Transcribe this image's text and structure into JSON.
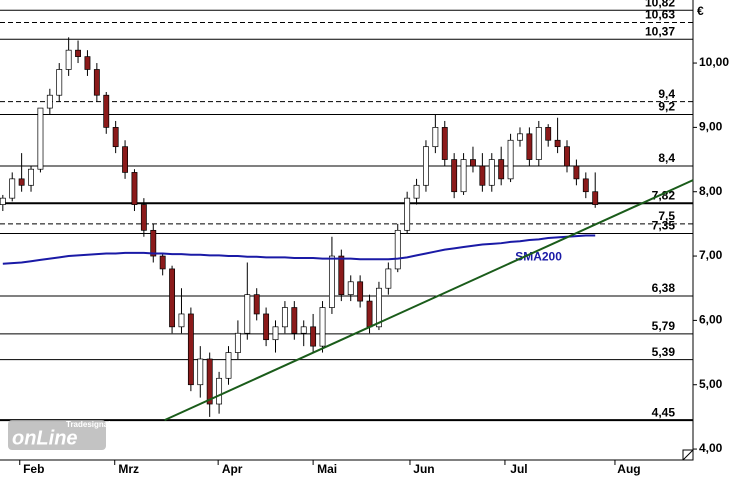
{
  "chart_data": {
    "type": "candlestick",
    "currency": "€",
    "logo": {
      "brand": "Tradesignal",
      "name": "onLine"
    },
    "up_color": "#ffffff",
    "down_color": "#8b1a1a",
    "xlim": [
      -0.3,
      73.4
    ],
    "xticks": [
      {
        "value": 1.8,
        "label": "Feb"
      },
      {
        "value": 11.9,
        "label": "Mrz"
      },
      {
        "value": 22.9,
        "label": "Apr"
      },
      {
        "value": 33,
        "label": "Mai"
      },
      {
        "value": 43.3,
        "label": "Jun"
      },
      {
        "value": 53.4,
        "label": "Jul"
      },
      {
        "value": 65.1,
        "label": "Aug"
      }
    ],
    "ylim": [
      3.83,
      10.98
    ],
    "yticks": [
      {
        "value": 4,
        "label": "4,00"
      },
      {
        "value": 5,
        "label": "5,00"
      },
      {
        "value": 6,
        "label": "6,00"
      },
      {
        "value": 7,
        "label": "7,00"
      },
      {
        "value": 8,
        "label": "8,00"
      },
      {
        "value": 9,
        "label": "9,00"
      },
      {
        "value": 10,
        "label": "10,00"
      }
    ],
    "levels": [
      {
        "value": 10.82,
        "label": "10,82",
        "style": "solid"
      },
      {
        "value": 10.63,
        "label": "10,63",
        "style": "dashed"
      },
      {
        "value": 10.37,
        "label": "10,37",
        "style": "solid"
      },
      {
        "value": 9.4,
        "label": "9,4",
        "style": "dashed"
      },
      {
        "value": 9.2,
        "label": "9,2",
        "style": "solid"
      },
      {
        "value": 8.4,
        "label": "8,4",
        "style": "solid"
      },
      {
        "value": 7.82,
        "label": "7,82",
        "style": "bold"
      },
      {
        "value": 7.5,
        "label": "7,5",
        "style": "dashed"
      },
      {
        "value": 7.35,
        "label": "7,35",
        "style": "solid"
      },
      {
        "value": 6.38,
        "label": "6,38",
        "style": "solid"
      },
      {
        "value": 5.79,
        "label": "5,79",
        "style": "solid"
      },
      {
        "value": 5.39,
        "label": "5,39",
        "style": "solid"
      },
      {
        "value": 4.45,
        "label": "4,45",
        "style": "bold"
      }
    ],
    "candles": [
      [
        7.8,
        7.95,
        7.7,
        7.9
      ],
      [
        7.9,
        8.3,
        7.85,
        8.2
      ],
      [
        8.2,
        8.6,
        8.0,
        8.1
      ],
      [
        8.1,
        8.4,
        8.0,
        8.35
      ],
      [
        8.35,
        9.3,
        8.3,
        9.3
      ],
      [
        9.3,
        9.6,
        9.2,
        9.5
      ],
      [
        9.5,
        10.0,
        9.4,
        9.9
      ],
      [
        9.9,
        10.4,
        9.8,
        10.2
      ],
      [
        10.2,
        10.35,
        10.0,
        10.1
      ],
      [
        10.1,
        10.2,
        9.8,
        9.9
      ],
      [
        9.9,
        10.0,
        9.4,
        9.5
      ],
      [
        9.5,
        9.55,
        8.9,
        9.0
      ],
      [
        9.0,
        9.1,
        8.6,
        8.7
      ],
      [
        8.7,
        8.8,
        8.2,
        8.3
      ],
      [
        8.3,
        8.35,
        7.7,
        7.8
      ],
      [
        7.8,
        7.9,
        7.3,
        7.4
      ],
      [
        7.4,
        7.5,
        6.9,
        7.0
      ],
      [
        7.0,
        7.05,
        6.7,
        6.8
      ],
      [
        6.8,
        6.85,
        5.8,
        5.9
      ],
      [
        5.9,
        6.5,
        5.8,
        6.1
      ],
      [
        6.1,
        6.2,
        4.9,
        5.0
      ],
      [
        5.0,
        5.6,
        4.8,
        5.4
      ],
      [
        5.4,
        5.5,
        4.5,
        4.7
      ],
      [
        4.7,
        5.2,
        4.55,
        5.1
      ],
      [
        5.1,
        5.6,
        5.0,
        5.5
      ],
      [
        5.5,
        6.0,
        5.4,
        5.8
      ],
      [
        5.8,
        6.9,
        5.7,
        6.4
      ],
      [
        6.4,
        6.5,
        6.0,
        6.1
      ],
      [
        6.1,
        6.2,
        5.6,
        5.7
      ],
      [
        5.7,
        6.0,
        5.5,
        5.9
      ],
      [
        5.9,
        6.3,
        5.8,
        6.2
      ],
      [
        6.2,
        6.3,
        5.7,
        5.8
      ],
      [
        5.8,
        6.0,
        5.6,
        5.9
      ],
      [
        5.9,
        6.1,
        5.5,
        5.6
      ],
      [
        5.6,
        6.3,
        5.5,
        6.2
      ],
      [
        6.2,
        7.3,
        6.1,
        7.0
      ],
      [
        7.0,
        7.1,
        6.3,
        6.4
      ],
      [
        6.4,
        6.7,
        6.3,
        6.6
      ],
      [
        6.6,
        6.7,
        6.2,
        6.3
      ],
      [
        6.3,
        6.4,
        5.8,
        5.9
      ],
      [
        5.9,
        6.6,
        5.85,
        6.5
      ],
      [
        6.5,
        6.9,
        6.4,
        6.8
      ],
      [
        6.8,
        7.5,
        6.75,
        7.4
      ],
      [
        7.4,
        8.0,
        7.35,
        7.9
      ],
      [
        7.9,
        8.2,
        7.8,
        8.1
      ],
      [
        8.1,
        8.8,
        8.0,
        8.7
      ],
      [
        8.7,
        9.2,
        8.6,
        9.0
      ],
      [
        9.0,
        9.1,
        8.4,
        8.5
      ],
      [
        8.5,
        8.6,
        7.9,
        8.0
      ],
      [
        8.0,
        8.6,
        7.95,
        8.5
      ],
      [
        8.5,
        8.7,
        8.3,
        8.4
      ],
      [
        8.4,
        8.6,
        8.0,
        8.1
      ],
      [
        8.1,
        8.6,
        8.0,
        8.5
      ],
      [
        8.5,
        8.7,
        8.1,
        8.2
      ],
      [
        8.2,
        8.9,
        8.15,
        8.8
      ],
      [
        8.8,
        9.0,
        8.7,
        8.9
      ],
      [
        8.9,
        9.0,
        8.4,
        8.5
      ],
      [
        8.5,
        9.1,
        8.4,
        9.0
      ],
      [
        9.0,
        9.05,
        8.7,
        8.8
      ],
      [
        8.8,
        9.15,
        8.6,
        8.7
      ],
      [
        8.7,
        8.8,
        8.3,
        8.4
      ],
      [
        8.4,
        8.5,
        8.1,
        8.2
      ],
      [
        8.2,
        8.3,
        7.9,
        8.0
      ],
      [
        8.0,
        8.3,
        7.75,
        7.8
      ]
    ],
    "series": [
      {
        "name": "SMA200",
        "color": "#1a1aa6",
        "values": [
          6.88,
          6.89,
          6.9,
          6.92,
          6.94,
          6.96,
          6.98,
          7.0,
          7.01,
          7.02,
          7.03,
          7.04,
          7.04,
          7.05,
          7.05,
          7.05,
          7.04,
          7.04,
          7.03,
          7.03,
          7.02,
          7.02,
          7.01,
          7.01,
          7.0,
          7.0,
          6.99,
          6.99,
          6.98,
          6.98,
          6.98,
          6.97,
          6.97,
          6.97,
          6.96,
          6.96,
          6.96,
          6.96,
          6.95,
          6.95,
          6.95,
          6.95,
          6.96,
          6.98,
          7.01,
          7.04,
          7.07,
          7.1,
          7.12,
          7.14,
          7.16,
          7.18,
          7.19,
          7.2,
          7.22,
          7.23,
          7.25,
          7.26,
          7.28,
          7.29,
          7.3,
          7.31,
          7.32,
          7.32
        ]
      }
    ],
    "trendline": {
      "x": [
        17.2,
        73.4
      ],
      "values": [
        4.45,
        8.18
      ],
      "color": "#1a5c1a"
    }
  }
}
